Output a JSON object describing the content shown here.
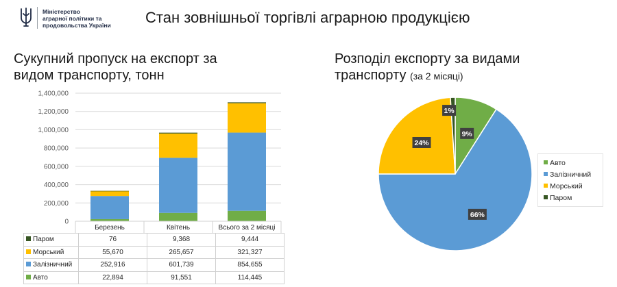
{
  "header": {
    "ministry_lines": [
      "Міністерство",
      "аграрної політики та",
      "продовольства України"
    ],
    "title": "Стан зовнішньої торгівлі аграрною продукцією"
  },
  "colors": {
    "avto": "#70ad47",
    "zaliznychnyi": "#5b9bd5",
    "morskyi": "#ffc000",
    "parom": "#375623"
  },
  "chart_data": [
    {
      "type": "bar",
      "stacked": true,
      "title": "Сукупний пропуск на експорт за видом транспорту, тонн",
      "categories": [
        "Березень",
        "Квітень",
        "Всього за 2 місяці"
      ],
      "series": [
        {
          "name": "Авто",
          "values": [
            22894,
            91551,
            114445
          ],
          "labels": [
            "22,894",
            "91,551",
            "114,445"
          ]
        },
        {
          "name": "Залізничний",
          "values": [
            252916,
            601739,
            854655
          ],
          "labels": [
            "252,916",
            "601,739",
            "854,655"
          ]
        },
        {
          "name": "Морський",
          "values": [
            55670,
            265657,
            321327
          ],
          "labels": [
            "55,670",
            "265,657",
            "321,327"
          ]
        },
        {
          "name": "Паром",
          "values": [
            76,
            9368,
            9444
          ],
          "labels": [
            "76",
            "9,368",
            "9,444"
          ]
        }
      ],
      "ylim": [
        0,
        1400000
      ],
      "yticks": [
        "0",
        "200,000",
        "400,000",
        "600,000",
        "800,000",
        "1,000,000",
        "1,200,000",
        "1,400,000"
      ],
      "grid": true,
      "data_table": true
    },
    {
      "type": "pie",
      "title": "Розподіл експорту за видами транспорту",
      "subtitle": "(за 2 місяці)",
      "slices": [
        {
          "name": "Авто",
          "value": 9,
          "label": "9%"
        },
        {
          "name": "Залізничний",
          "value": 66,
          "label": "66%"
        },
        {
          "name": "Морський",
          "value": 24,
          "label": "24%"
        },
        {
          "name": "Паром",
          "value": 1,
          "label": "1%"
        }
      ],
      "legend": "right"
    }
  ]
}
